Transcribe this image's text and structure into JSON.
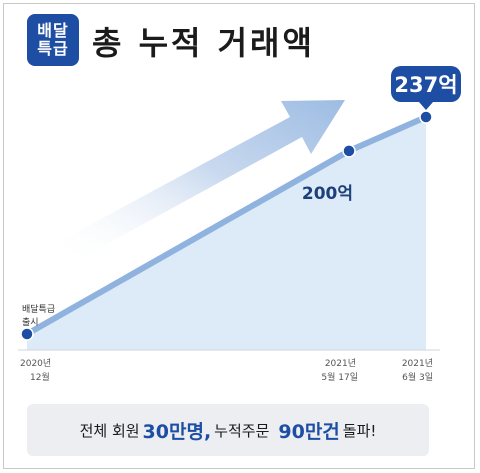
{
  "header": {
    "logo_line1": "배달",
    "logo_line2": "특급",
    "title": "총 누적 거래액"
  },
  "chart_data": {
    "type": "area",
    "title": "총 누적 거래액",
    "x": [
      "2020년 12월",
      "2021년 5월 17일",
      "2021년 6월 3일"
    ],
    "values": [
      0,
      200,
      237
    ],
    "unit": "억",
    "annotations": [
      {
        "text": "배달특급 출시",
        "lines": [
          "배달특급",
          "출시"
        ]
      },
      {
        "text": "200억"
      },
      {
        "text": "237억"
      }
    ],
    "x_labels": [
      {
        "lines": [
          "2020년",
          "12월"
        ]
      },
      {
        "lines": [
          "2021년",
          "5월 17일"
        ]
      },
      {
        "lines": [
          "2021년",
          "6월 3일"
        ]
      }
    ],
    "colors": {
      "line": "#8fb2df",
      "fill": "#dcebf7",
      "point": "#1d4ea3"
    }
  },
  "banner": {
    "part1": "전체 회원",
    "highlight1": "30만명,",
    "part2": "누적주문",
    "highlight2": "90만건",
    "part3": "돌파!"
  }
}
